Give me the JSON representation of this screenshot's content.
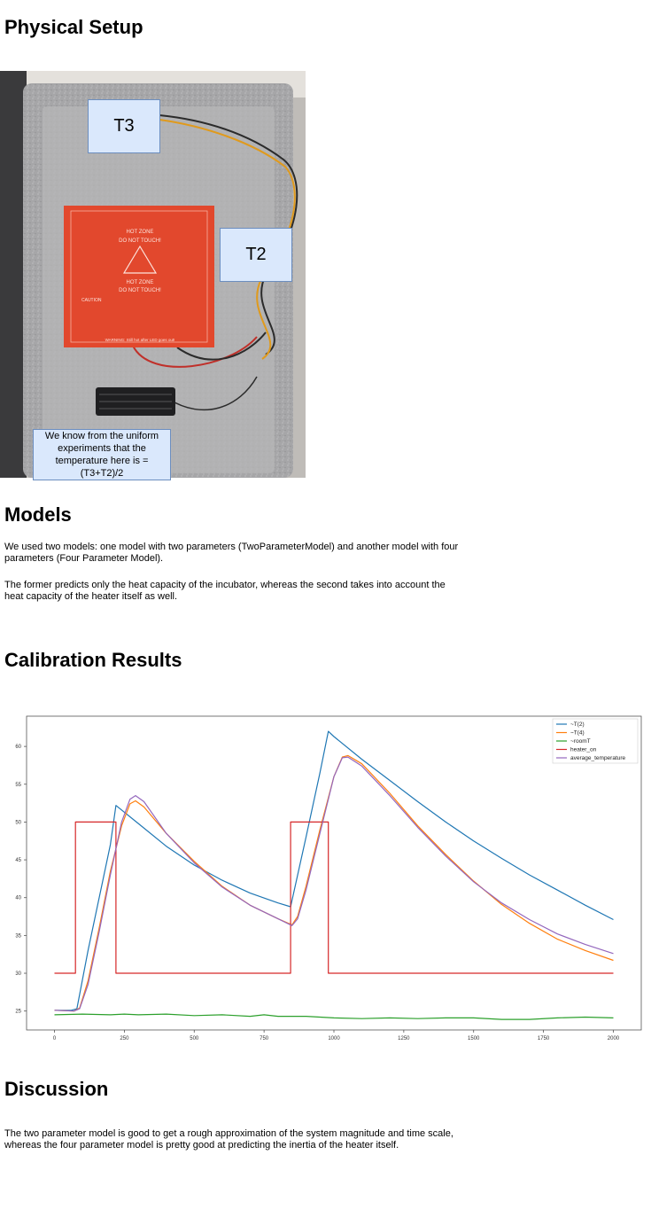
{
  "sections": {
    "physical_setup": "Physical Setup",
    "models": "Models",
    "calibration": "Calibration Results",
    "discussion": "Discussion"
  },
  "photo": {
    "label_t3": "T3",
    "label_t2": "T2",
    "note": "We know from the uniform experiments that the temperature here is = (T3+T2)/2",
    "heater_text": {
      "line1": "HOT ZONE",
      "line2": "DO NOT TOUCH!",
      "line3": "HOT ZONE",
      "line4": "DO NOT TOUCH!",
      "caution": "CAUTION",
      "warning": "WARNING: Still hot after LED goes out!"
    }
  },
  "models": {
    "para1": "We used two models: one model with two parameters (TwoParameterModel) and another model with four parameters (Four Parameter Model).",
    "para2": "The former predicts only the heat capacity of the incubator, whereas the second takes into account the heat capacity of the heater itself as well."
  },
  "discussion": {
    "para1": "The two parameter model is good to get a rough approximation of the system magnitude and time scale, whereas the four parameter model is pretty good at predicting the inertia of the heater itself."
  },
  "chart_data": {
    "type": "line",
    "title": "",
    "xlabel": "",
    "ylabel": "",
    "xlim": [
      -100,
      2100
    ],
    "ylim": [
      22.5,
      64
    ],
    "xticks": [
      0,
      250,
      500,
      750,
      1000,
      1250,
      1500,
      1750,
      2000
    ],
    "yticks": [
      25,
      30,
      35,
      40,
      45,
      50,
      55,
      60
    ],
    "grid": false,
    "legend_position": "top-right",
    "series": [
      {
        "name": "~T(2)",
        "color": "#1f77b4",
        "points": [
          [
            0,
            25.1
          ],
          [
            60,
            25.1
          ],
          [
            80,
            25.3
          ],
          [
            120,
            33
          ],
          [
            160,
            40
          ],
          [
            200,
            47
          ],
          [
            220,
            52.2
          ],
          [
            300,
            49.8
          ],
          [
            400,
            46.8
          ],
          [
            500,
            44.3
          ],
          [
            600,
            42.3
          ],
          [
            700,
            40.6
          ],
          [
            800,
            39.3
          ],
          [
            845,
            38.8
          ],
          [
            900,
            48
          ],
          [
            950,
            56.5
          ],
          [
            980,
            62
          ],
          [
            1000,
            61.3
          ],
          [
            1100,
            58.3
          ],
          [
            1200,
            55.5
          ],
          [
            1300,
            52.7
          ],
          [
            1400,
            50
          ],
          [
            1500,
            47.5
          ],
          [
            1600,
            45.2
          ],
          [
            1700,
            43
          ],
          [
            1800,
            41
          ],
          [
            1900,
            39
          ],
          [
            2000,
            37.1
          ]
        ]
      },
      {
        "name": "~T(4)",
        "color": "#ff7f0e",
        "points": [
          [
            0,
            25.1
          ],
          [
            70,
            25
          ],
          [
            90,
            25.4
          ],
          [
            120,
            29
          ],
          [
            160,
            36
          ],
          [
            200,
            43.5
          ],
          [
            240,
            49.5
          ],
          [
            270,
            52.4
          ],
          [
            290,
            52.8
          ],
          [
            320,
            52
          ],
          [
            400,
            48.5
          ],
          [
            500,
            44.8
          ],
          [
            600,
            41.5
          ],
          [
            700,
            39
          ],
          [
            800,
            37.2
          ],
          [
            850,
            36.4
          ],
          [
            870,
            37.5
          ],
          [
            900,
            41.5
          ],
          [
            950,
            49
          ],
          [
            1000,
            56
          ],
          [
            1030,
            58.6
          ],
          [
            1050,
            58.8
          ],
          [
            1100,
            57.7
          ],
          [
            1200,
            53.8
          ],
          [
            1300,
            49.5
          ],
          [
            1400,
            45.7
          ],
          [
            1500,
            42.2
          ],
          [
            1600,
            39.1
          ],
          [
            1700,
            36.6
          ],
          [
            1800,
            34.5
          ],
          [
            1900,
            33
          ],
          [
            2000,
            31.7
          ]
        ]
      },
      {
        "name": "~roomT",
        "color": "#2ca02c",
        "points": [
          [
            0,
            24.5
          ],
          [
            100,
            24.6
          ],
          [
            200,
            24.5
          ],
          [
            250,
            24.6
          ],
          [
            300,
            24.5
          ],
          [
            400,
            24.6
          ],
          [
            500,
            24.4
          ],
          [
            600,
            24.5
          ],
          [
            700,
            24.3
          ],
          [
            750,
            24.5
          ],
          [
            800,
            24.3
          ],
          [
            900,
            24.3
          ],
          [
            1000,
            24.1
          ],
          [
            1100,
            24
          ],
          [
            1200,
            24.1
          ],
          [
            1300,
            24
          ],
          [
            1400,
            24.1
          ],
          [
            1500,
            24.1
          ],
          [
            1600,
            23.9
          ],
          [
            1700,
            23.9
          ],
          [
            1800,
            24.1
          ],
          [
            1900,
            24.2
          ],
          [
            2000,
            24.1
          ]
        ]
      },
      {
        "name": "heater_on",
        "color": "#d62728",
        "points": [
          [
            0,
            30
          ],
          [
            75,
            30
          ],
          [
            75,
            50
          ],
          [
            220,
            50
          ],
          [
            220,
            30
          ],
          [
            845,
            30
          ],
          [
            845,
            50
          ],
          [
            980,
            50
          ],
          [
            980,
            30
          ],
          [
            2000,
            30
          ]
        ]
      },
      {
        "name": "average_temperature",
        "color": "#9467bd",
        "points": [
          [
            0,
            25.1
          ],
          [
            70,
            25
          ],
          [
            90,
            25.3
          ],
          [
            120,
            28.5
          ],
          [
            160,
            35.5
          ],
          [
            200,
            43
          ],
          [
            240,
            50
          ],
          [
            270,
            53
          ],
          [
            290,
            53.5
          ],
          [
            320,
            52.7
          ],
          [
            400,
            48.5
          ],
          [
            500,
            44.6
          ],
          [
            600,
            41.4
          ],
          [
            700,
            39
          ],
          [
            800,
            37.2
          ],
          [
            850,
            36.3
          ],
          [
            870,
            37.2
          ],
          [
            900,
            41
          ],
          [
            950,
            48.5
          ],
          [
            1000,
            56
          ],
          [
            1030,
            58.5
          ],
          [
            1050,
            58.6
          ],
          [
            1100,
            57.4
          ],
          [
            1200,
            53.5
          ],
          [
            1300,
            49.3
          ],
          [
            1400,
            45.5
          ],
          [
            1500,
            42.1
          ],
          [
            1600,
            39.3
          ],
          [
            1700,
            37.1
          ],
          [
            1800,
            35.2
          ],
          [
            1900,
            33.8
          ],
          [
            2000,
            32.6
          ]
        ]
      }
    ]
  }
}
